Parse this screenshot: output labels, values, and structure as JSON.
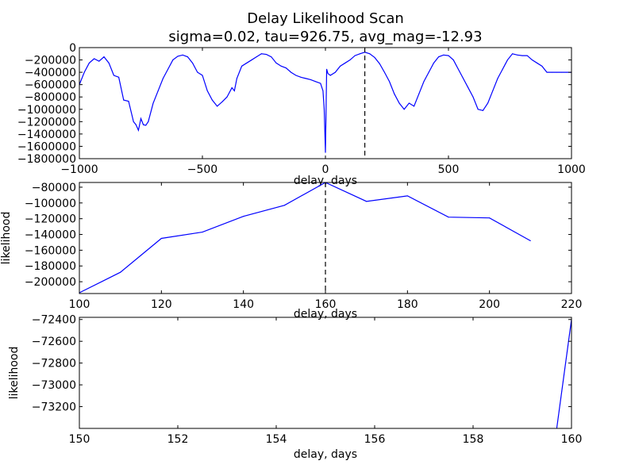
{
  "figure": {
    "title_line1": "Delay Likelihood Scan",
    "title_line2": "sigma=0.02, tau=926.75, avg_mag=-12.93"
  },
  "colors": {
    "series": "#0000ff",
    "axes": "#000000",
    "marker": "#000000"
  },
  "chart_data": [
    {
      "type": "line",
      "xlabel": "delay, days",
      "ylabel": "",
      "xlim": [
        -1000,
        1000
      ],
      "ylim": [
        -1800000,
        0
      ],
      "xticks": [
        -1000,
        -500,
        0,
        500,
        1000
      ],
      "yticks": [
        0,
        -200000,
        -400000,
        -600000,
        -800000,
        -1000000,
        -1200000,
        -1400000,
        -1600000,
        -1800000
      ],
      "vline_x": 160,
      "grid": false,
      "series": [
        {
          "x": [
            -1000,
            -980,
            -960,
            -940,
            -920,
            -900,
            -880,
            -860,
            -840,
            -820,
            -800,
            -780,
            -770,
            -760,
            -750,
            -740,
            -730,
            -720,
            -700,
            -680,
            -660,
            -640,
            -620,
            -600,
            -580,
            -560,
            -540,
            -520,
            -500,
            -480,
            -460,
            -440,
            -420,
            -400,
            -380,
            -370,
            -360,
            -340,
            -320,
            -300,
            -280,
            -260,
            -240,
            -220,
            -200,
            -180,
            -160,
            -140,
            -120,
            -100,
            -80,
            -60,
            -40,
            -20,
            -10,
            -5,
            0,
            5,
            10,
            20,
            40,
            60,
            80,
            100,
            120,
            140,
            160,
            180,
            200,
            220,
            240,
            260,
            280,
            300,
            320,
            340,
            360,
            380,
            400,
            420,
            440,
            460,
            480,
            500,
            520,
            540,
            560,
            580,
            600,
            620,
            640,
            660,
            680,
            700,
            720,
            740,
            760,
            770,
            780,
            800,
            820,
            840,
            860,
            880,
            900,
            920,
            940,
            960,
            980,
            1000
          ],
          "y": [
            -600000,
            -400000,
            -250000,
            -180000,
            -220000,
            -150000,
            -250000,
            -450000,
            -480000,
            -850000,
            -870000,
            -1200000,
            -1250000,
            -1340000,
            -1150000,
            -1250000,
            -1260000,
            -1200000,
            -900000,
            -700000,
            -500000,
            -350000,
            -200000,
            -140000,
            -120000,
            -150000,
            -250000,
            -400000,
            -450000,
            -700000,
            -850000,
            -950000,
            -880000,
            -800000,
            -650000,
            -700000,
            -500000,
            -300000,
            -250000,
            -200000,
            -150000,
            -100000,
            -110000,
            -150000,
            -250000,
            -300000,
            -330000,
            -400000,
            -450000,
            -480000,
            -500000,
            -520000,
            -550000,
            -580000,
            -700000,
            -1000000,
            -1700000,
            -350000,
            -420000,
            -450000,
            -400000,
            -300000,
            -250000,
            -200000,
            -130000,
            -100000,
            -74000,
            -100000,
            -160000,
            -260000,
            -400000,
            -550000,
            -750000,
            -900000,
            -1000000,
            -900000,
            -950000,
            -750000,
            -550000,
            -400000,
            -250000,
            -150000,
            -120000,
            -130000,
            -200000,
            -350000,
            -500000,
            -650000,
            -800000,
            -1000000,
            -1020000,
            -900000,
            -700000,
            -500000,
            -350000,
            -200000,
            -100000,
            -110000,
            -120000,
            -130000,
            -130000,
            -200000,
            -250000,
            -300000,
            -400000,
            -400000,
            -400000,
            -400000,
            -400000,
            -400000
          ]
        }
      ]
    },
    {
      "type": "line",
      "xlabel": "delay, days",
      "ylabel": "likelihood",
      "xlim": [
        100,
        220
      ],
      "ylim": [
        -215000,
        -74000
      ],
      "xticks": [
        100,
        120,
        140,
        160,
        180,
        200,
        220
      ],
      "yticks": [
        -80000,
        -100000,
        -120000,
        -140000,
        -160000,
        -180000,
        -200000
      ],
      "vline_x": 160,
      "grid": false,
      "series": [
        {
          "x": [
            100,
            110,
            120,
            130,
            140,
            150,
            160,
            170,
            180,
            190,
            200,
            210
          ],
          "y": [
            -214000,
            -188000,
            -145000,
            -137000,
            -117000,
            -103000,
            -74000,
            -98000,
            -91000,
            -118000,
            -119000,
            -148000
          ]
        }
      ]
    },
    {
      "type": "line",
      "xlabel": "delay, days",
      "ylabel": "likelihood",
      "xlim": [
        150,
        160
      ],
      "ylim": [
        -73400,
        -72380
      ],
      "xticks": [
        150,
        152,
        154,
        156,
        158,
        160
      ],
      "yticks": [
        -72400,
        -72600,
        -72800,
        -73000,
        -73200
      ],
      "grid": false,
      "series": [
        {
          "x": [
            159.7,
            160
          ],
          "y": [
            -73400,
            -72400
          ]
        }
      ]
    }
  ]
}
